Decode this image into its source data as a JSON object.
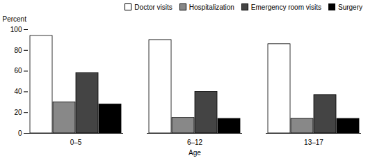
{
  "chart_data": {
    "type": "bar",
    "y_label": "Percent",
    "x_label": "Age",
    "categories": [
      "0–5",
      "6–12",
      "13–17"
    ],
    "series": [
      {
        "name": "Doctor visits",
        "color": "#ffffff",
        "values": [
          94,
          90,
          86
        ]
      },
      {
        "name": "Hospitalization",
        "color": "#888888",
        "values": [
          30,
          15,
          14
        ]
      },
      {
        "name": "Emergency room visits",
        "color": "#444444",
        "values": [
          58,
          40,
          37
        ]
      },
      {
        "name": "Surgery",
        "color": "#000000",
        "values": [
          28,
          14,
          14
        ]
      }
    ],
    "ylim": [
      0,
      100
    ],
    "yticks": [
      0,
      20,
      40,
      60,
      80,
      100
    ],
    "grid": false,
    "legend": "top-right"
  }
}
